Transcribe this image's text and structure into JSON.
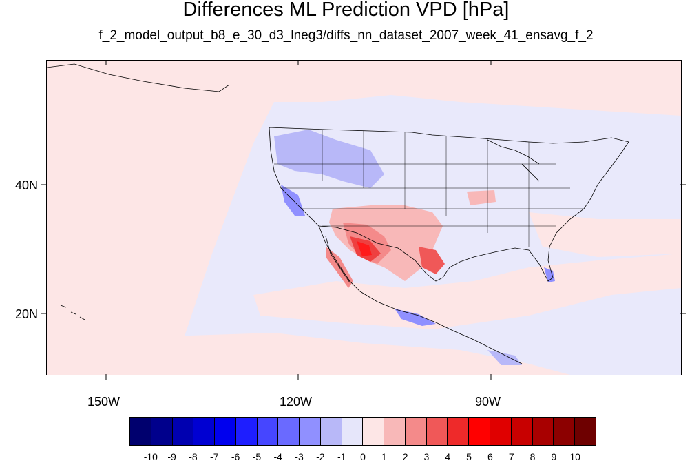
{
  "title": "Differences ML Prediction VPD [hPa]",
  "subtitle": "f_2_model_output_b8_e_30_d3_lneg3/diffs_nn_dataset_2007_week_41_ensavg_f_2",
  "lat_labels": [
    "40N",
    "20N"
  ],
  "lon_labels": [
    "150W",
    "120W",
    "90W"
  ],
  "colorbar": {
    "labels": [
      "-10",
      "-9",
      "-8",
      "-7",
      "-6",
      "-5",
      "-4",
      "-3",
      "-2",
      "-1",
      "0",
      "1",
      "2",
      "3",
      "4",
      "5",
      "6",
      "7",
      "8",
      "9",
      "10"
    ],
    "colors": [
      "#00006e",
      "#00008c",
      "#0000b0",
      "#0000d2",
      "#0000ee",
      "#1e1eff",
      "#4646ff",
      "#6a6aff",
      "#9090ff",
      "#b8b8f8",
      "#e6e6fa",
      "#fde6e6",
      "#f8b8b8",
      "#f48a8a",
      "#f05858",
      "#ee2a2a",
      "#ff0000",
      "#e00000",
      "#c80000",
      "#a80000",
      "#8c0000",
      "#6e0000"
    ]
  },
  "map_colors": {
    "neutral_blue": "#e9e9fb",
    "neutral_pink": "#fde6e6",
    "light_blue": "#b8b8f8",
    "mid_blue": "#9090ff",
    "light_red": "#f8b8b8",
    "mid_red": "#f48a8a",
    "red": "#ee4040",
    "deep_red": "#ff1a1a"
  }
}
